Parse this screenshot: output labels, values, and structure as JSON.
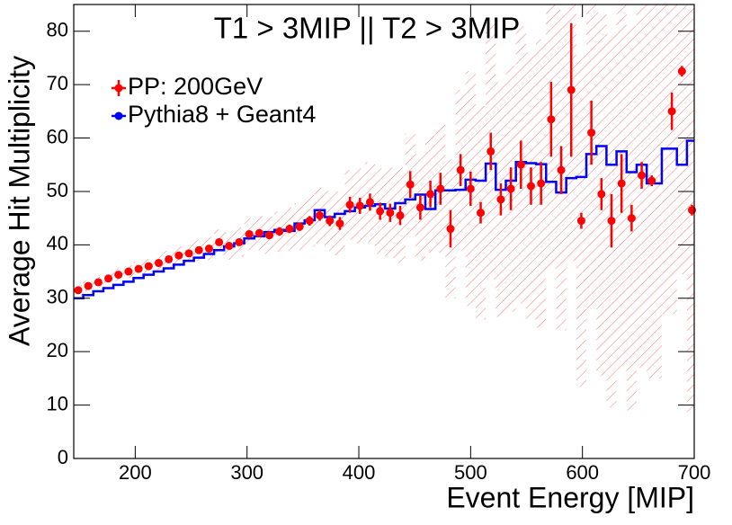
{
  "chart_data": {
    "type": "errorbar",
    "title": "T1 > 3MIP || T2 > 3MIP",
    "x_label": "Event Energy [MIP]",
    "y_label": "Average Hit Multiplicity",
    "xlim": [
      145,
      700
    ],
    "ylim": [
      0,
      85
    ],
    "xticks": [
      200,
      300,
      400,
      500,
      600,
      700
    ],
    "yticks": [
      0,
      10,
      20,
      30,
      40,
      50,
      60,
      70,
      80
    ],
    "x": [
      149,
      158,
      167,
      176,
      185,
      194,
      203,
      212,
      221,
      230,
      239,
      248,
      257,
      266,
      275,
      284,
      293,
      302,
      311,
      320,
      329,
      338,
      347,
      356,
      365,
      374,
      383,
      392,
      401,
      410,
      419,
      428,
      437,
      446,
      455,
      464,
      473,
      482,
      491,
      500,
      509,
      518,
      527,
      536,
      545,
      554,
      563,
      572,
      581,
      590,
      599,
      608,
      617,
      626,
      635,
      644,
      653,
      662,
      680,
      689,
      698
    ],
    "series": [
      {
        "name": "PP: 200GeV",
        "color": "#ff0000",
        "values": [
          31.5,
          32.3,
          33.0,
          33.7,
          34.4,
          35.0,
          35.5,
          36.0,
          36.6,
          37.3,
          38.0,
          38.4,
          39.0,
          39.3,
          40.5,
          39.8,
          40.5,
          42.0,
          42.2,
          41.8,
          42.5,
          43.0,
          43.4,
          44.5,
          45.5,
          44.5,
          44.0,
          47.5,
          47.3,
          48.0,
          46.3,
          46.0,
          45.5,
          51.3,
          47.0,
          49.5,
          50.5,
          43.0,
          54.0,
          50.5,
          46.0,
          57.5,
          48.5,
          50.5,
          55.0,
          51.0,
          51.5,
          63.5,
          54.0,
          69.0,
          44.5,
          61.0,
          49.5,
          44.5,
          51.5,
          45.0,
          53.0,
          52.0,
          65.0,
          72.5,
          46.5
        ],
        "errors": [
          0.4,
          0.4,
          0.4,
          0.4,
          0.4,
          0.4,
          0.4,
          0.4,
          0.4,
          0.5,
          0.5,
          0.5,
          0.5,
          0.5,
          0.6,
          0.6,
          0.6,
          0.7,
          0.7,
          0.7,
          0.8,
          0.8,
          0.8,
          0.9,
          1.0,
          1.0,
          1.2,
          1.5,
          1.5,
          1.6,
          1.6,
          1.7,
          1.8,
          2.5,
          2.3,
          2.5,
          3.0,
          3.5,
          3.0,
          3.2,
          2.0,
          3.5,
          3.0,
          4.0,
          4.5,
          3.5,
          4.0,
          7.0,
          4.5,
          12.5,
          1.5,
          6.0,
          3.0,
          5.0,
          5.5,
          2.5,
          2.5,
          1.0,
          3.5,
          1.0,
          1.0
        ],
        "sys": [
          1.0,
          1.0,
          1.0,
          1.0,
          1.2,
          1.2,
          1.3,
          1.4,
          1.5,
          1.6,
          1.7,
          1.8,
          2.0,
          2.2,
          2.4,
          2.6,
          2.8,
          3.0,
          3.2,
          3.5,
          3.8,
          4.0,
          4.4,
          4.8,
          5.2,
          5.6,
          6.0,
          6.5,
          7.0,
          7.5,
          8.0,
          8.5,
          9.0,
          9.5,
          10.0,
          11.0,
          12.0,
          13.0,
          15.0,
          22.0,
          20.0,
          24.0,
          22.0,
          23.0,
          26.0,
          25.0,
          27.0,
          28.0,
          30.0,
          32.0,
          31.0,
          33.0,
          34.0,
          35.0,
          35.0,
          36.0,
          36.0,
          37.0,
          38.0,
          38.0,
          38.0
        ]
      },
      {
        "name": "Pythia8 + Geant4",
        "color": "#0000ff",
        "values": [
          30.0,
          30.6,
          31.3,
          31.9,
          32.5,
          33.1,
          33.8,
          34.4,
          35.0,
          35.6,
          36.3,
          37.0,
          37.6,
          38.3,
          39.0,
          39.7,
          40.3,
          41.2,
          41.6,
          42.4,
          42.8,
          42.6,
          44.0,
          44.6,
          46.5,
          45.2,
          45.8,
          46.3,
          47.0,
          47.3,
          47.6,
          46.8,
          47.8,
          48.5,
          49.4,
          46.7,
          50.2,
          50.2,
          50.3,
          52.2,
          52.0,
          55.2,
          50.3,
          52.0,
          55.5,
          55.3,
          55.1,
          51.8,
          49.8,
          52.5,
          52.7,
          57.0,
          58.5,
          55.0,
          57.5,
          53.6,
          55.0,
          51.5,
          58.0,
          55.0,
          59.5
        ]
      }
    ],
    "legend": "upper left",
    "grid": false
  }
}
